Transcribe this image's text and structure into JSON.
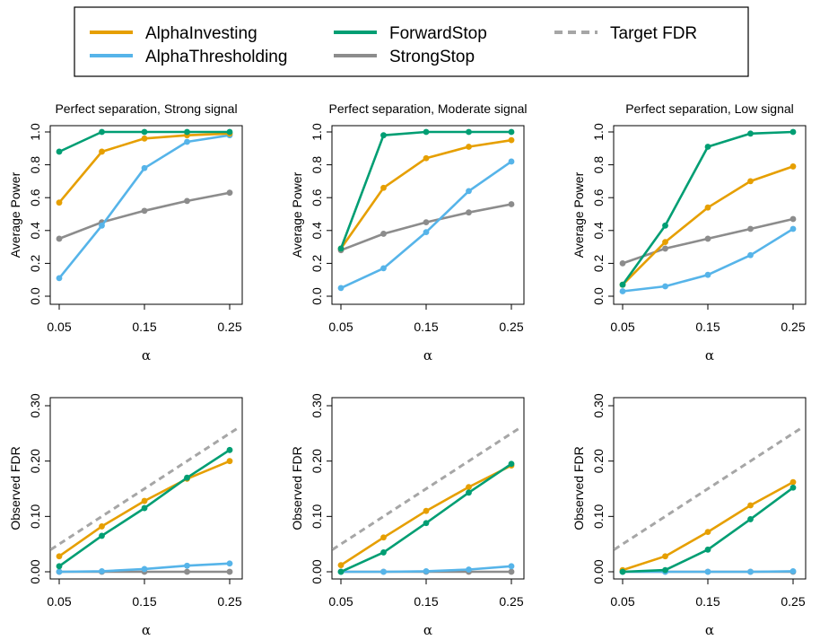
{
  "legend": {
    "items": [
      {
        "label": "AlphaInvesting",
        "color": "#E69F00",
        "dash": false
      },
      {
        "label": "AlphaThresholding",
        "color": "#56B4E9",
        "dash": false
      },
      {
        "label": "ForwardStop",
        "color": "#009E73",
        "dash": false
      },
      {
        "label": "StrongStop",
        "color": "#8C8C8C",
        "dash": false
      },
      {
        "label": "Target FDR",
        "color": "#A6A6A6",
        "dash": true
      }
    ]
  },
  "chart_data": [
    {
      "type": "line",
      "title": "Perfect separation, Strong signal",
      "xlabel": "α",
      "ylabel": "Average Power",
      "x": [
        0.05,
        0.1,
        0.15,
        0.2,
        0.25
      ],
      "x_ticks": [
        "0.05",
        "0.15",
        "0.25"
      ],
      "y_ticks": [
        "0.0",
        "0.2",
        "0.4",
        "0.6",
        "0.8",
        "1.0"
      ],
      "xlim": [
        0.05,
        0.25
      ],
      "ylim": [
        0,
        1
      ],
      "series": [
        {
          "name": "AlphaInvesting",
          "values": [
            0.57,
            0.88,
            0.96,
            0.98,
            0.99
          ]
        },
        {
          "name": "AlphaThresholding",
          "values": [
            0.11,
            0.43,
            0.78,
            0.94,
            0.98
          ]
        },
        {
          "name": "ForwardStop",
          "values": [
            0.88,
            1.0,
            1.0,
            1.0,
            1.0
          ]
        },
        {
          "name": "StrongStop",
          "values": [
            0.35,
            0.45,
            0.52,
            0.58,
            0.63
          ]
        }
      ]
    },
    {
      "type": "line",
      "title": "Perfect separation, Moderate signal",
      "xlabel": "α",
      "ylabel": "Average Power",
      "x": [
        0.05,
        0.1,
        0.15,
        0.2,
        0.25
      ],
      "x_ticks": [
        "0.05",
        "0.15",
        "0.25"
      ],
      "y_ticks": [
        "0.0",
        "0.2",
        "0.4",
        "0.6",
        "0.8",
        "1.0"
      ],
      "xlim": [
        0.05,
        0.25
      ],
      "ylim": [
        0,
        1
      ],
      "series": [
        {
          "name": "AlphaInvesting",
          "values": [
            0.29,
            0.66,
            0.84,
            0.91,
            0.95
          ]
        },
        {
          "name": "AlphaThresholding",
          "values": [
            0.05,
            0.17,
            0.39,
            0.64,
            0.82
          ]
        },
        {
          "name": "ForwardStop",
          "values": [
            0.29,
            0.98,
            1.0,
            1.0,
            1.0
          ]
        },
        {
          "name": "StrongStop",
          "values": [
            0.28,
            0.38,
            0.45,
            0.51,
            0.56
          ]
        }
      ]
    },
    {
      "type": "line",
      "title": "Perfect separation, Low signal",
      "xlabel": "α",
      "ylabel": "Average Power",
      "x": [
        0.05,
        0.1,
        0.15,
        0.2,
        0.25
      ],
      "x_ticks": [
        "0.05",
        "0.15",
        "0.25"
      ],
      "y_ticks": [
        "0.0",
        "0.2",
        "0.4",
        "0.6",
        "0.8",
        "1.0"
      ],
      "xlim": [
        0.05,
        0.25
      ],
      "ylim": [
        0,
        1
      ],
      "series": [
        {
          "name": "AlphaInvesting",
          "values": [
            0.07,
            0.33,
            0.54,
            0.7,
            0.79
          ]
        },
        {
          "name": "AlphaThresholding",
          "values": [
            0.03,
            0.06,
            0.13,
            0.25,
            0.41
          ]
        },
        {
          "name": "ForwardStop",
          "values": [
            0.07,
            0.43,
            0.91,
            0.99,
            1.0
          ]
        },
        {
          "name": "StrongStop",
          "values": [
            0.2,
            0.29,
            0.35,
            0.41,
            0.47
          ]
        }
      ]
    },
    {
      "type": "line",
      "title": "",
      "xlabel": "α",
      "ylabel": "Observed FDR",
      "x": [
        0.05,
        0.1,
        0.15,
        0.2,
        0.25
      ],
      "x_ticks": [
        "0.05",
        "0.15",
        "0.25"
      ],
      "y_ticks": [
        "0.00",
        "0.10",
        "0.20",
        "0.30"
      ],
      "xlim": [
        0.05,
        0.25
      ],
      "ylim": [
        0,
        0.3
      ],
      "series": [
        {
          "name": "AlphaInvesting",
          "values": [
            0.028,
            0.082,
            0.128,
            0.168,
            0.2
          ]
        },
        {
          "name": "AlphaThresholding",
          "values": [
            0.0,
            0.001,
            0.005,
            0.011,
            0.015
          ]
        },
        {
          "name": "ForwardStop",
          "values": [
            0.01,
            0.065,
            0.115,
            0.17,
            0.22
          ]
        },
        {
          "name": "StrongStop",
          "values": [
            0.0,
            0.0,
            0.0,
            0.0,
            0.0
          ]
        },
        {
          "name": "Target FDR",
          "values": [
            0.05,
            0.1,
            0.15,
            0.2,
            0.25
          ],
          "dashed": true
        }
      ]
    },
    {
      "type": "line",
      "title": "",
      "xlabel": "α",
      "ylabel": "Observed FDR",
      "x": [
        0.05,
        0.1,
        0.15,
        0.2,
        0.25
      ],
      "x_ticks": [
        "0.05",
        "0.15",
        "0.25"
      ],
      "y_ticks": [
        "0.00",
        "0.10",
        "0.20",
        "0.30"
      ],
      "xlim": [
        0.05,
        0.25
      ],
      "ylim": [
        0,
        0.3
      ],
      "series": [
        {
          "name": "AlphaInvesting",
          "values": [
            0.012,
            0.062,
            0.11,
            0.153,
            0.192
          ]
        },
        {
          "name": "AlphaThresholding",
          "values": [
            0.0,
            0.0,
            0.001,
            0.004,
            0.01
          ]
        },
        {
          "name": "ForwardStop",
          "values": [
            0.0,
            0.035,
            0.088,
            0.143,
            0.195
          ]
        },
        {
          "name": "StrongStop",
          "values": [
            0.0,
            0.0,
            0.0,
            0.0,
            0.0
          ]
        },
        {
          "name": "Target FDR",
          "values": [
            0.05,
            0.1,
            0.15,
            0.2,
            0.25
          ],
          "dashed": true
        }
      ]
    },
    {
      "type": "line",
      "title": "",
      "xlabel": "α",
      "ylabel": "Observed FDR",
      "x": [
        0.05,
        0.1,
        0.15,
        0.2,
        0.25
      ],
      "x_ticks": [
        "0.05",
        "0.15",
        "0.25"
      ],
      "y_ticks": [
        "0.00",
        "0.10",
        "0.20",
        "0.30"
      ],
      "xlim": [
        0.05,
        0.25
      ],
      "ylim": [
        0,
        0.3
      ],
      "series": [
        {
          "name": "AlphaInvesting",
          "values": [
            0.003,
            0.028,
            0.072,
            0.12,
            0.162
          ]
        },
        {
          "name": "AlphaThresholding",
          "values": [
            0.0,
            0.0,
            0.0,
            0.0,
            0.001
          ]
        },
        {
          "name": "ForwardStop",
          "values": [
            0.0,
            0.003,
            0.04,
            0.095,
            0.152
          ]
        },
        {
          "name": "StrongStop",
          "values": [
            0.0,
            0.0,
            0.0,
            0.0,
            0.0
          ]
        },
        {
          "name": "Target FDR",
          "values": [
            0.05,
            0.1,
            0.15,
            0.2,
            0.25
          ],
          "dashed": true
        }
      ]
    }
  ]
}
